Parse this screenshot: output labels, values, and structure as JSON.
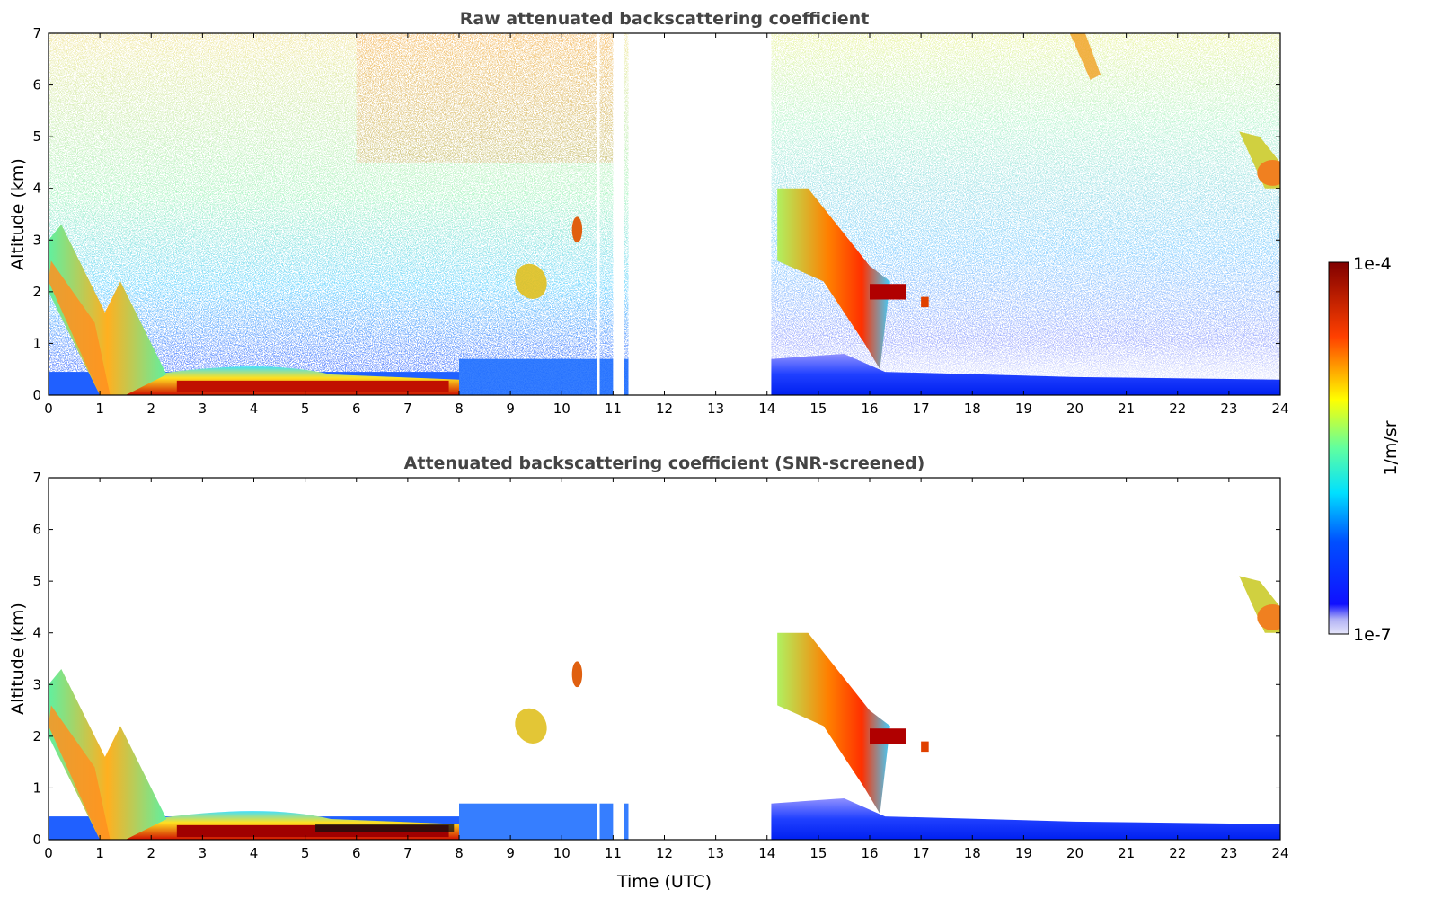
{
  "chart_data": [
    {
      "type": "heatmap",
      "title": "Raw attenuated backscattering coefficient",
      "xlabel": "",
      "ylabel": "Altitude (km)",
      "xlim": [
        0,
        24
      ],
      "ylim": [
        0,
        7
      ],
      "x_ticks": [
        "0",
        "1",
        "2",
        "3",
        "4",
        "5",
        "6",
        "7",
        "8",
        "9",
        "10",
        "11",
        "12",
        "13",
        "14",
        "15",
        "16",
        "17",
        "18",
        "19",
        "20",
        "21",
        "22",
        "23",
        "24"
      ],
      "y_ticks": [
        "0",
        "1",
        "2",
        "3",
        "4",
        "5",
        "6",
        "7"
      ],
      "grid": false,
      "data_gaps_utc": [
        [
          10.68,
          10.74
        ],
        [
          11.0,
          11.22
        ],
        [
          11.3,
          14.08
        ]
      ],
      "features": [
        {
          "kind": "boundary layer aerosol",
          "t_start": 0,
          "t_end": 8,
          "alt_top_km": 0.6
        },
        {
          "kind": "descending aerosol layer",
          "t_start": 0,
          "t_end": 2.5,
          "alt_start_km": 2.8,
          "alt_end_km": 0.2
        },
        {
          "kind": "cloud",
          "t_start": 14.2,
          "t_end": 16.4,
          "alt_start_km": 4.0,
          "alt_end_km": 0.8
        },
        {
          "kind": "cloud",
          "t_start": 9.0,
          "t_end": 9.7,
          "alt_start_km": 2.5,
          "alt_end_km": 1.7
        },
        {
          "kind": "cloud",
          "t_start": 23.2,
          "t_end": 24.0,
          "alt_start_km": 5.0,
          "alt_end_km": 4.0
        },
        {
          "kind": "cloud",
          "t_start": 20.0,
          "t_end": 20.5,
          "alt_start_km": 7.0,
          "alt_end_km": 6.2
        }
      ]
    },
    {
      "type": "heatmap",
      "title": "Attenuated backscattering coefficient (SNR-screened)",
      "xlabel": "Time (UTC)",
      "ylabel": "Altitude (km)",
      "xlim": [
        0,
        24
      ],
      "ylim": [
        0,
        7
      ],
      "x_ticks": [
        "0",
        "1",
        "2",
        "3",
        "4",
        "5",
        "6",
        "7",
        "8",
        "9",
        "10",
        "11",
        "12",
        "13",
        "14",
        "15",
        "16",
        "17",
        "18",
        "19",
        "20",
        "21",
        "22",
        "23",
        "24"
      ],
      "y_ticks": [
        "0",
        "1",
        "2",
        "3",
        "4",
        "5",
        "6",
        "7"
      ],
      "grid": false,
      "data_gaps_utc": [
        [
          10.68,
          10.74
        ],
        [
          11.0,
          11.22
        ],
        [
          11.3,
          14.08
        ]
      ],
      "features": [
        {
          "kind": "boundary layer aerosol",
          "t_start": 0,
          "t_end": 8,
          "alt_top_km": 0.6
        },
        {
          "kind": "descending aerosol layer",
          "t_start": 0,
          "t_end": 2.5,
          "alt_start_km": 2.8,
          "alt_end_km": 0.2
        },
        {
          "kind": "cloud",
          "t_start": 14.2,
          "t_end": 16.4,
          "alt_start_km": 4.0,
          "alt_end_km": 0.8
        },
        {
          "kind": "cloud",
          "t_start": 9.0,
          "t_end": 9.7,
          "alt_start_km": 2.5,
          "alt_end_km": 1.7
        },
        {
          "kind": "cloud",
          "t_start": 23.2,
          "t_end": 24.0,
          "alt_start_km": 5.0,
          "alt_end_km": 4.0
        }
      ]
    }
  ],
  "colorbar": {
    "label": "1/m/sr",
    "min_label": "1e-7",
    "max_label": "1e-4",
    "scale": "log",
    "colormap_stops": [
      "#e6e6fa",
      "#0000ff",
      "#00ffff",
      "#ffff00",
      "#ff0000",
      "#800000"
    ]
  }
}
